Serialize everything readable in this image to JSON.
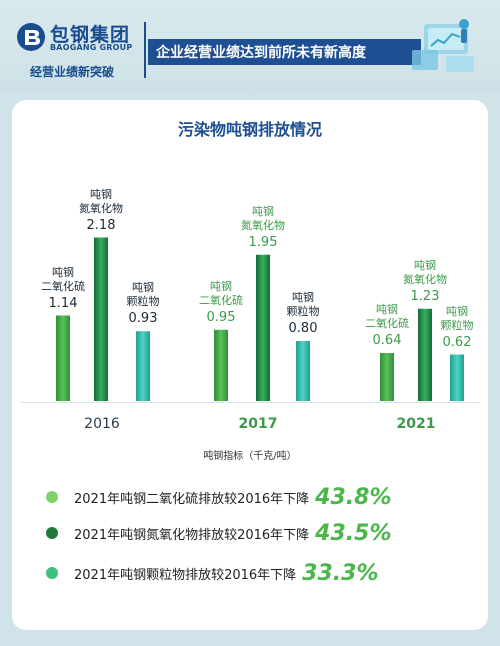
{
  "header": {
    "logo_cn": "包钢集团",
    "logo_en": "BAOGANG GROUP",
    "subtitle": "经营业绩新突破",
    "banner": "企业经营业绩达到前所未有新高度"
  },
  "colors": {
    "so2": "#3a9a3a",
    "nox": "#1f8a4a",
    "pm": "#2cb6a8",
    "accent_green": "#4bb74a",
    "brand_blue": "#1d4f92"
  },
  "chart_data": {
    "type": "bar",
    "title": "污染物吨钢排放情况",
    "categories": [
      "2016",
      "2017",
      "2021"
    ],
    "series": [
      {
        "name": "吨钢二氧化硫",
        "values": [
          1.14,
          0.95,
          0.64
        ]
      },
      {
        "name": "吨钢氮氧化物",
        "values": [
          2.18,
          1.95,
          1.23
        ]
      },
      {
        "name": "吨钢颗粒物",
        "values": [
          0.93,
          0.8,
          0.62
        ]
      }
    ],
    "unit_note": "吨钢指标（千克/吨）",
    "grid": false
  },
  "stats": [
    {
      "text": "2021年吨钢二氧化硫排放较2016年下降",
      "value": "43.8%"
    },
    {
      "text": "2021年吨钢氮氧化物排放较2016年下降",
      "value": "43.5%"
    },
    {
      "text": "2021年吨钢颗粒物排放较2016年下降",
      "value": "33.3%"
    }
  ]
}
